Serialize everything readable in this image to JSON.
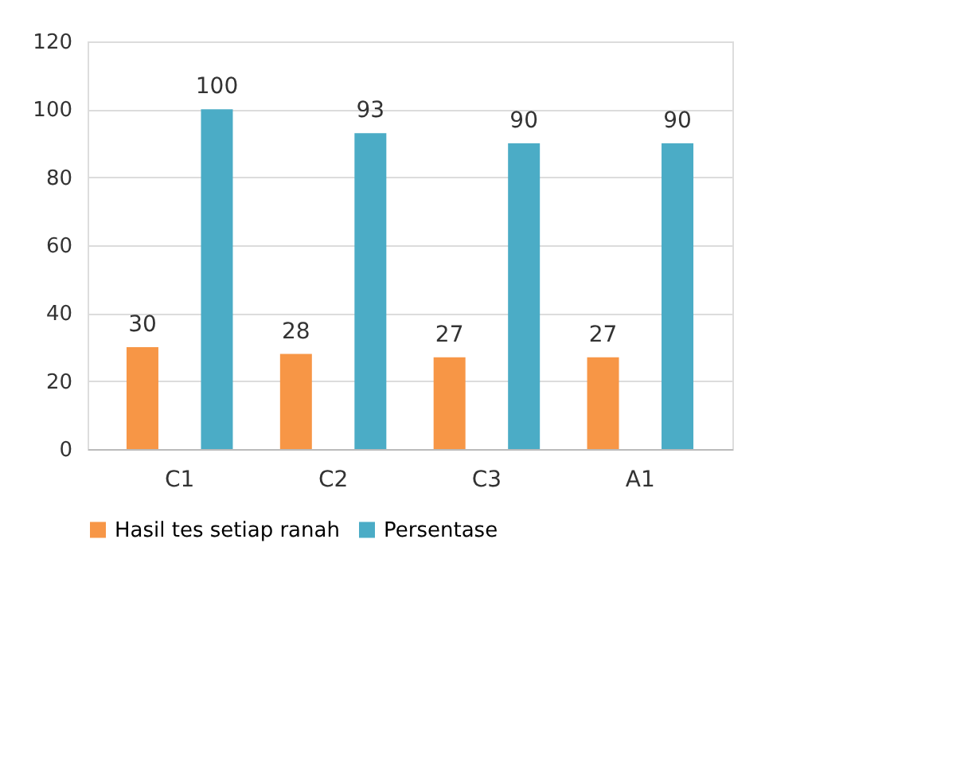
{
  "chart_data": {
    "type": "bar",
    "categories": [
      "C1",
      "C2",
      "C3",
      "A1"
    ],
    "series": [
      {
        "name": "Hasil tes setiap ranah",
        "color": "#f79646",
        "values": [
          30,
          28,
          27,
          27
        ]
      },
      {
        "name": "Persentase",
        "color": "#4bacc6",
        "values": [
          100,
          93,
          90,
          90
        ]
      }
    ],
    "ylim": [
      0,
      120
    ],
    "yticks": [
      0,
      20,
      40,
      60,
      80,
      100,
      120
    ],
    "grid": "y",
    "legend": "bottom",
    "data_labels": true
  }
}
